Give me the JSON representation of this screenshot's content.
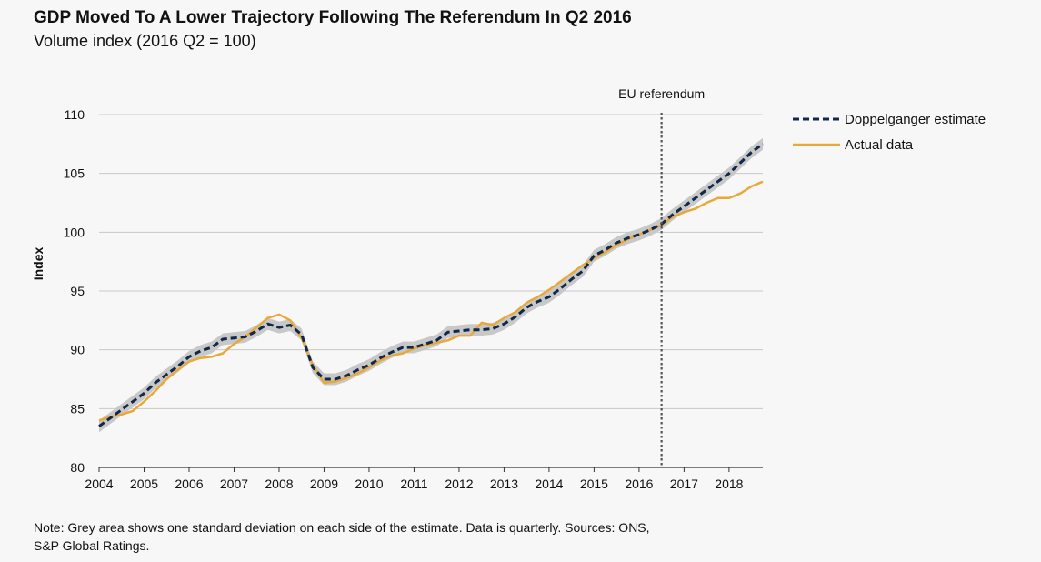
{
  "chart_data": {
    "type": "line",
    "title": "GDP Moved To A Lower Trajectory Following The Referendum In Q2 2016",
    "subtitle": "Volume index (2016 Q2 = 100)",
    "ylabel": "Index",
    "xlabel": "",
    "xlim": [
      2004.0,
      2018.75
    ],
    "ylim": [
      80,
      110
    ],
    "yticks": [
      80,
      85,
      90,
      95,
      100,
      105,
      110
    ],
    "xtick_labels": [
      "2004",
      "2005",
      "2006",
      "2007",
      "2008",
      "2009",
      "2010",
      "2011",
      "2012",
      "2013",
      "2014",
      "2015",
      "2016",
      "2017",
      "2018"
    ],
    "grid": "horizontal",
    "legend_position": "top-right",
    "annotation": {
      "label": "EU referendum",
      "x": 2016.5
    },
    "band": {
      "description": "one standard deviation",
      "half_width": 0.5,
      "color": "#c8c8c8"
    },
    "series": [
      {
        "name": "Doppelganger estimate",
        "color": "#10284a",
        "style": "dashed",
        "x": [
          2004.0,
          2004.25,
          2004.5,
          2004.75,
          2005.0,
          2005.25,
          2005.5,
          2005.75,
          2006.0,
          2006.25,
          2006.5,
          2006.75,
          2007.0,
          2007.25,
          2007.5,
          2007.75,
          2008.0,
          2008.25,
          2008.5,
          2008.75,
          2009.0,
          2009.25,
          2009.5,
          2009.75,
          2010.0,
          2010.25,
          2010.5,
          2010.75,
          2011.0,
          2011.25,
          2011.5,
          2011.75,
          2012.0,
          2012.25,
          2012.5,
          2012.75,
          2013.0,
          2013.25,
          2013.5,
          2013.75,
          2014.0,
          2014.25,
          2014.5,
          2014.75,
          2015.0,
          2015.25,
          2015.5,
          2015.75,
          2016.0,
          2016.25,
          2016.5,
          2016.75,
          2017.0,
          2017.25,
          2017.5,
          2017.75,
          2018.0,
          2018.25,
          2018.5,
          2018.75
        ],
        "y": [
          83.5,
          84.2,
          84.9,
          85.6,
          86.3,
          87.2,
          87.9,
          88.6,
          89.4,
          89.9,
          90.2,
          90.9,
          91.0,
          91.1,
          91.6,
          92.2,
          91.9,
          92.1,
          91.3,
          88.5,
          87.5,
          87.5,
          87.8,
          88.3,
          88.7,
          89.3,
          89.8,
          90.2,
          90.2,
          90.5,
          90.8,
          91.5,
          91.6,
          91.7,
          91.7,
          91.8,
          92.2,
          92.8,
          93.6,
          94.1,
          94.5,
          95.2,
          96.0,
          96.7,
          98.0,
          98.5,
          99.1,
          99.5,
          99.8,
          100.2,
          100.7,
          101.5,
          102.2,
          102.9,
          103.6,
          104.3,
          105.0,
          105.9,
          106.8,
          107.5
        ]
      },
      {
        "name": "Actual data",
        "color": "#e9a93a",
        "style": "solid",
        "x": [
          2004.0,
          2004.25,
          2004.5,
          2004.75,
          2005.0,
          2005.25,
          2005.5,
          2005.75,
          2006.0,
          2006.25,
          2006.5,
          2006.75,
          2007.0,
          2007.25,
          2007.5,
          2007.75,
          2008.0,
          2008.25,
          2008.5,
          2008.75,
          2009.0,
          2009.25,
          2009.5,
          2009.75,
          2010.0,
          2010.25,
          2010.5,
          2010.75,
          2011.0,
          2011.25,
          2011.5,
          2011.75,
          2012.0,
          2012.25,
          2012.5,
          2012.75,
          2013.0,
          2013.25,
          2013.5,
          2013.75,
          2014.0,
          2014.25,
          2014.5,
          2014.75,
          2015.0,
          2015.25,
          2015.5,
          2015.75,
          2016.0,
          2016.25,
          2016.5,
          2016.75,
          2017.0,
          2017.25,
          2017.5,
          2017.75,
          2018.0,
          2018.25,
          2018.5,
          2018.75
        ],
        "y": [
          84.0,
          84.3,
          84.5,
          84.8,
          85.6,
          86.5,
          87.5,
          88.3,
          89.0,
          89.3,
          89.4,
          89.7,
          90.5,
          91.1,
          91.9,
          92.7,
          93.0,
          92.5,
          91.0,
          88.7,
          87.2,
          87.3,
          87.6,
          88.0,
          88.5,
          89.1,
          89.5,
          89.7,
          90.1,
          90.4,
          90.6,
          90.8,
          91.2,
          91.2,
          92.3,
          92.1,
          92.7,
          93.2,
          94.0,
          94.5,
          95.1,
          95.8,
          96.5,
          97.2,
          97.8,
          98.3,
          98.9,
          99.4,
          99.8,
          100.2,
          100.6,
          101.3,
          101.7,
          102.0,
          102.5,
          102.9,
          102.9,
          103.3,
          103.9,
          104.3
        ]
      }
    ]
  },
  "note": {
    "line1": "Note: Grey area shows one standard deviation on each side of the estimate. Data is quarterly. Sources: ONS,",
    "line2": "S&P Global Ratings."
  }
}
